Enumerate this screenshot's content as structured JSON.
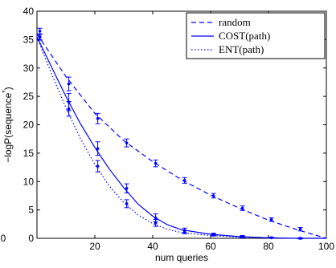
{
  "chart_data": {
    "type": "line",
    "xlabel": "num queries",
    "ylabel": "−logP(sequence",
    "ylabel_superscript": "*",
    "ylabel_close": ")",
    "xlim": [
      0,
      100
    ],
    "ylim": [
      0,
      40
    ],
    "xticks": [
      20,
      40,
      60,
      80,
      100
    ],
    "xtick_labels": [
      "20",
      "40",
      "60",
      "80",
      "100"
    ],
    "yticks": [
      0,
      5,
      10,
      15,
      20,
      25,
      30,
      35,
      40
    ],
    "ytick_labels": [
      "0",
      "5",
      "10",
      "15",
      "20",
      "25",
      "30",
      "35",
      "40"
    ],
    "x_origin_label": "0",
    "grid": false,
    "legend_position": "top-right",
    "series": [
      {
        "name": "random",
        "color": "#0000ff",
        "style": "dashed",
        "x": [
          1,
          11,
          21,
          31,
          41,
          51,
          61,
          71,
          81,
          91
        ],
        "y": [
          36.5,
          27.2,
          21.1,
          16.8,
          13.2,
          10.2,
          7.5,
          5.3,
          3.3,
          1.6
        ],
        "err": [
          0.5,
          1.2,
          0.9,
          0.7,
          0.6,
          0.5,
          0.4,
          0.4,
          0.3,
          0.3
        ],
        "curve_x": [
          0,
          10,
          20,
          30,
          40,
          50,
          60,
          70,
          80,
          90,
          100
        ],
        "curve_y": [
          36.0,
          28.5,
          22.0,
          17.2,
          13.5,
          10.3,
          7.6,
          5.3,
          3.2,
          1.5,
          0
        ]
      },
      {
        "name": "COST(path)",
        "color": "#0000ff",
        "style": "solid",
        "x": [
          1,
          11,
          21,
          31,
          41,
          51,
          61,
          71,
          81,
          91
        ],
        "y": [
          35.5,
          24.0,
          15.8,
          8.8,
          3.6,
          1.4,
          0.7,
          0.3,
          0.1,
          0.0
        ],
        "err": [
          0.5,
          1.5,
          1.2,
          0.8,
          0.7,
          0.4,
          0.2,
          0.2,
          0.1,
          0.1
        ],
        "curve_x": [
          0,
          5,
          10,
          15,
          20,
          25,
          30,
          35,
          40,
          45,
          50,
          60,
          70,
          80,
          90,
          100
        ],
        "curve_y": [
          35.5,
          30.2,
          25.0,
          20.2,
          16.0,
          12.2,
          8.9,
          6.0,
          3.9,
          2.4,
          1.5,
          0.7,
          0.3,
          0.1,
          0.0,
          0.0
        ]
      },
      {
        "name": "ENT(path)",
        "color": "#0000ff",
        "style": "dotted",
        "x": [
          1,
          11,
          21,
          31,
          41,
          51,
          61,
          71,
          81,
          91
        ],
        "y": [
          35.4,
          22.8,
          12.7,
          6.1,
          2.7,
          1.1,
          0.6,
          0.3,
          0.1,
          0.0
        ],
        "err": [
          0.5,
          1.3,
          1.0,
          0.7,
          0.6,
          0.3,
          0.2,
          0.1,
          0.1,
          0.1
        ],
        "curve_x": [
          0,
          5,
          10,
          15,
          20,
          25,
          30,
          35,
          40,
          45,
          50,
          60,
          70,
          80,
          90,
          100
        ],
        "curve_y": [
          35.4,
          29.0,
          23.0,
          17.6,
          13.0,
          9.2,
          6.3,
          4.1,
          2.6,
          1.6,
          1.0,
          0.5,
          0.2,
          0.1,
          0.0,
          0.0
        ]
      }
    ]
  }
}
